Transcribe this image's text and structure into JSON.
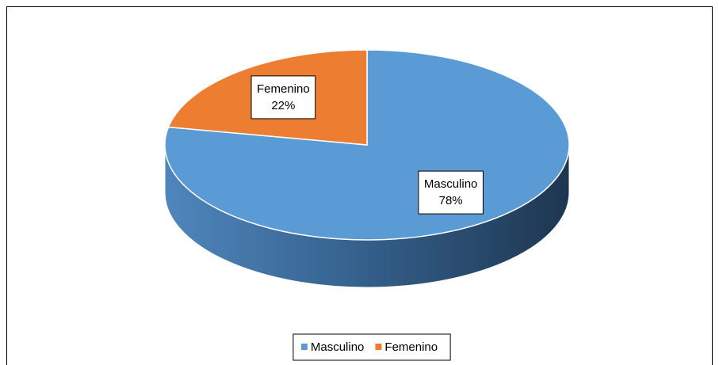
{
  "chart_data": {
    "type": "pie",
    "three_d": true,
    "categories": [
      "Masculino",
      "Femenino"
    ],
    "values": [
      78,
      22
    ],
    "value_labels": [
      "78%",
      "22%"
    ],
    "colors": [
      "#5b9bd5",
      "#ed7d31"
    ],
    "legend": "bottom"
  }
}
